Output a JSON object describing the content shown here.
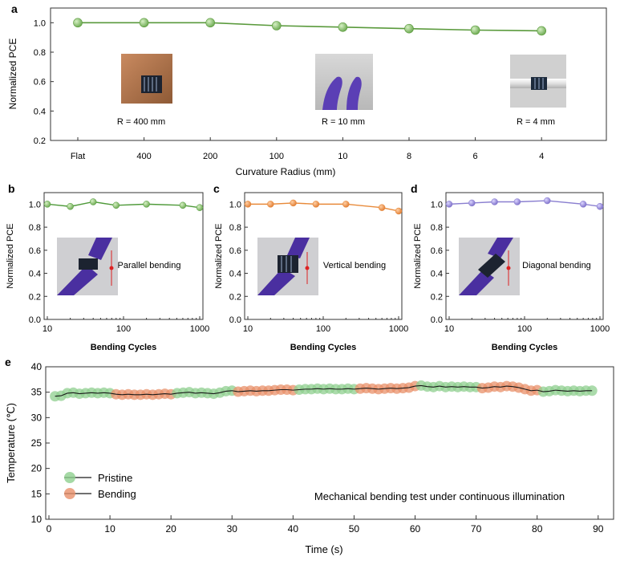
{
  "chart_data": [
    {
      "panel": "a",
      "type": "line",
      "categories": [
        "Flat",
        "400",
        "200",
        "100",
        "10",
        "8",
        "6",
        "4"
      ],
      "values": [
        1.0,
        1.0,
        1.0,
        0.98,
        0.97,
        0.96,
        0.95,
        0.945
      ],
      "xlabel": "Curvature Radius (mm)",
      "ylabel": "Normalized PCE",
      "ylim": [
        0.2,
        1.1
      ],
      "yticks": [
        "0.2",
        "0.4",
        "0.6",
        "0.8",
        "1.0"
      ],
      "color": "#5a9a3c",
      "marker_fill": "#a8d890",
      "insets": [
        {
          "caption": "R = 400 mm",
          "photo": "skin-arm"
        },
        {
          "caption": "R = 10 mm",
          "photo": "gloved-fingers"
        },
        {
          "caption": "R = 4 mm",
          "photo": "rod"
        }
      ]
    },
    {
      "panel": "b",
      "type": "line",
      "x": [
        10,
        20,
        40,
        80,
        200,
        600,
        1000
      ],
      "values": [
        1.0,
        0.98,
        1.02,
        0.99,
        1.0,
        0.99,
        0.97
      ],
      "xlabel": "Bending Cycles",
      "ylabel": "Normalized PCE",
      "ylim": [
        0.0,
        1.1
      ],
      "xscale": "log",
      "xticks": [
        "10",
        "100",
        "1000"
      ],
      "yticks": [
        "0.0",
        "0.2",
        "0.4",
        "0.6",
        "0.8",
        "1.0"
      ],
      "annotation": "Parallel bending",
      "color": "#4f9a3a",
      "marker_fill": "#8fcf70"
    },
    {
      "panel": "c",
      "type": "line",
      "x": [
        10,
        20,
        40,
        80,
        200,
        600,
        1000
      ],
      "values": [
        1.0,
        1.0,
        1.01,
        1.0,
        1.0,
        0.97,
        0.94
      ],
      "xlabel": "Bending Cycles",
      "ylabel": "Normalized PCE",
      "ylim": [
        0.0,
        1.1
      ],
      "xscale": "log",
      "xticks": [
        "10",
        "100",
        "1000"
      ],
      "yticks": [
        "0.0",
        "0.2",
        "0.4",
        "0.6",
        "0.8",
        "1.0"
      ],
      "annotation": "Vertical bending",
      "color": "#e88a3a",
      "marker_fill": "#f4a360"
    },
    {
      "panel": "d",
      "type": "line",
      "x": [
        10,
        20,
        40,
        80,
        200,
        600,
        1000
      ],
      "values": [
        1.0,
        1.01,
        1.02,
        1.02,
        1.03,
        1.0,
        0.98
      ],
      "xlabel": "Bending Cycles",
      "ylabel": "Normalized PCE",
      "ylim": [
        0.0,
        1.1
      ],
      "xscale": "log",
      "xticks": [
        "10",
        "100",
        "1000"
      ],
      "yticks": [
        "0.0",
        "0.2",
        "0.4",
        "0.6",
        "0.8",
        "1.0"
      ],
      "annotation": "Diagonal bending",
      "color": "#8a7fd0",
      "marker_fill": "#a99ee6"
    },
    {
      "panel": "e",
      "type": "scatter",
      "xlabel": "Time (s)",
      "ylabel": "Temperature (℃)",
      "xlim": [
        0,
        92
      ],
      "ylim": [
        10,
        40
      ],
      "xticks": [
        "0",
        "10",
        "20",
        "30",
        "40",
        "50",
        "60",
        "70",
        "80",
        "90"
      ],
      "yticks": [
        "10",
        "15",
        "20",
        "25",
        "30",
        "35",
        "40"
      ],
      "annotation": "Mechanical bending test under continuous illumination",
      "legend": [
        {
          "name": "Pristine",
          "color": "#8fcf8f"
        },
        {
          "name": "Bending",
          "color": "#e8906a"
        }
      ],
      "legend_position": "bottom-left",
      "line_color": "#1a1a1a",
      "series": [
        {
          "name": "Pristine",
          "color": "#8fcf8f",
          "x": [
            1,
            2,
            3,
            4,
            5,
            6,
            7,
            8,
            9,
            10,
            21,
            22,
            23,
            24,
            25,
            26,
            27,
            28,
            29,
            30,
            41,
            42,
            43,
            44,
            45,
            46,
            47,
            48,
            49,
            50,
            61,
            62,
            63,
            64,
            65,
            66,
            67,
            68,
            69,
            70,
            81,
            82,
            83,
            84,
            85,
            86,
            87,
            88,
            89
          ],
          "y": [
            34.2,
            34.3,
            34.8,
            34.9,
            34.7,
            34.8,
            34.9,
            34.8,
            34.9,
            34.8,
            34.8,
            34.9,
            35.0,
            34.8,
            34.9,
            34.8,
            34.7,
            34.9,
            35.2,
            35.3,
            35.5,
            35.6,
            35.6,
            35.7,
            35.6,
            35.7,
            35.6,
            35.6,
            35.7,
            35.6,
            36.3,
            36.1,
            36.0,
            36.2,
            36.0,
            36.1,
            36.0,
            36.1,
            36.0,
            36.0,
            35.1,
            35.2,
            35.4,
            35.3,
            35.2,
            35.3,
            35.2,
            35.3,
            35.3
          ]
        },
        {
          "name": "Bending",
          "color": "#e8906a",
          "x": [
            11,
            12,
            13,
            14,
            15,
            16,
            17,
            18,
            19,
            20,
            31,
            32,
            33,
            34,
            35,
            36,
            37,
            38,
            39,
            40,
            51,
            52,
            53,
            54,
            55,
            56,
            57,
            58,
            59,
            60,
            71,
            72,
            73,
            74,
            75,
            76,
            77,
            78,
            79,
            80
          ],
          "y": [
            34.6,
            34.5,
            34.6,
            34.5,
            34.5,
            34.6,
            34.5,
            34.6,
            34.7,
            34.6,
            35.1,
            35.2,
            35.3,
            35.2,
            35.3,
            35.3,
            35.4,
            35.5,
            35.5,
            35.4,
            35.7,
            35.8,
            35.7,
            35.6,
            35.7,
            35.8,
            35.7,
            35.8,
            35.9,
            36.2,
            35.8,
            35.9,
            36.1,
            36.0,
            36.2,
            36.1,
            35.9,
            35.6,
            35.3,
            35.4
          ]
        }
      ]
    }
  ]
}
